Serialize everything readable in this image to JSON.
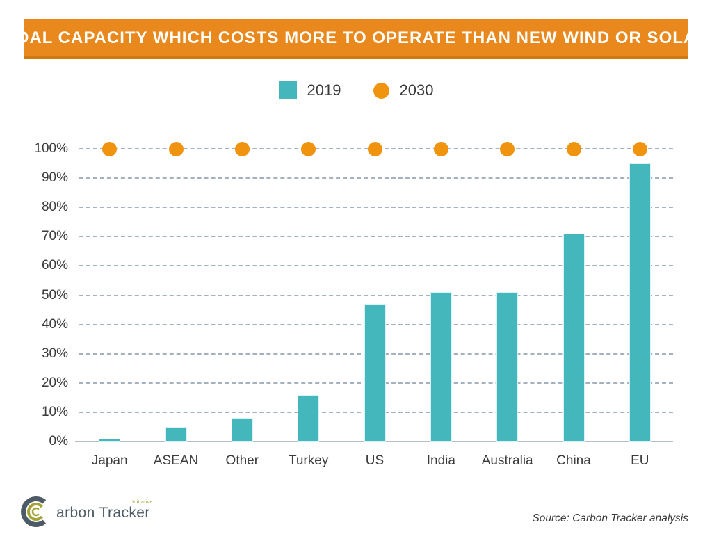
{
  "title": "COAL CAPACITY WHICH COSTS MORE TO OPERATE THAN NEW WIND OR SOLAR",
  "legend": {
    "items": [
      {
        "label": "2019",
        "swatch": "square",
        "color": "#44B7BD"
      },
      {
        "label": "2030",
        "swatch": "circle",
        "color": "#F0930F"
      }
    ]
  },
  "chart_data": {
    "type": "bar",
    "title": "COAL CAPACITY WHICH COSTS MORE TO OPERATE THAN NEW WIND OR SOLAR",
    "categories": [
      "Japan",
      "ASEAN",
      "Other",
      "Turkey",
      "US",
      "India",
      "Australia",
      "China",
      "EU"
    ],
    "series": [
      {
        "name": "2019",
        "type": "bar",
        "color": "#44B7BD",
        "values": [
          1,
          5,
          8,
          16,
          47,
          51,
          51,
          71,
          95
        ]
      },
      {
        "name": "2030",
        "type": "scatter",
        "color": "#F0930F",
        "values": [
          100,
          100,
          100,
          100,
          100,
          100,
          100,
          100,
          100
        ]
      }
    ],
    "xlabel": "",
    "ylabel": "",
    "ylim": [
      0,
      100
    ],
    "yticks": [
      "100%",
      "90%",
      "80%",
      "70%",
      "60%",
      "50%",
      "40%",
      "30%",
      "20%",
      "10%",
      "0%"
    ],
    "grid": "horizontal-dashed",
    "legend_position": "top-center"
  },
  "footer": {
    "logo": {
      "mark": "C",
      "text": "arbon Tracker",
      "superscript": "Initiative"
    },
    "source": "Source: Carbon Tracker analysis"
  },
  "colors": {
    "banner": "#E9891D",
    "banner_shadow": "#D0790F",
    "bar_teal": "#44B7BD",
    "dot_orange": "#F0930F",
    "gridline": "#A4B2BF",
    "axis_line": "#B7BEC5",
    "text": "#3B3B3B",
    "logo_slate": "#4C5B66",
    "logo_olive": "#A5A336"
  }
}
